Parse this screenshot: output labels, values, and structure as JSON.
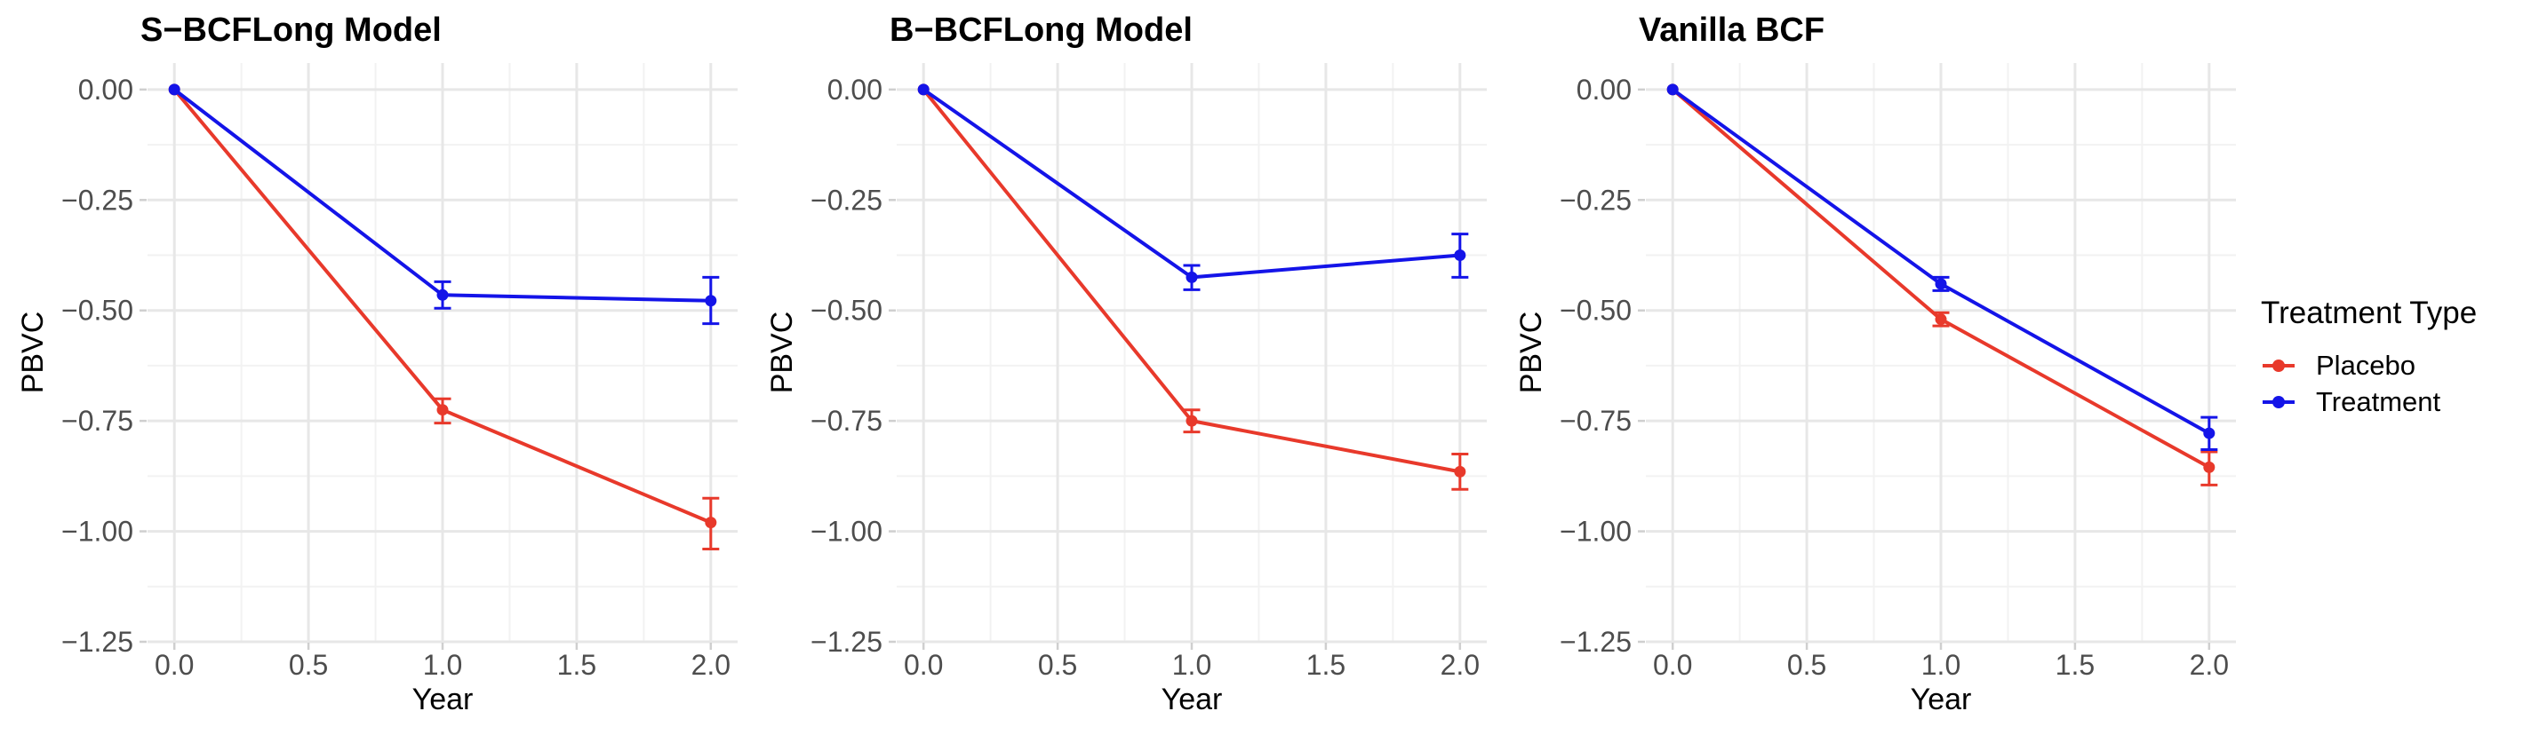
{
  "figure": {
    "background": "#ffffff",
    "grid_major_color": "#e7e7e7",
    "grid_minor_color": "#f2f2f2",
    "tick_mark_color": "#cfcfcf",
    "axis_text_color": "#4d4d4d"
  },
  "axes": {
    "x_label": "Year",
    "y_label": "PBVC",
    "x_ticks": [
      {
        "v": 0.0,
        "label": "0.0"
      },
      {
        "v": 0.5,
        "label": "0.5"
      },
      {
        "v": 1.0,
        "label": "1.0"
      },
      {
        "v": 1.5,
        "label": "1.5"
      },
      {
        "v": 2.0,
        "label": "2.0"
      }
    ],
    "y_ticks": [
      {
        "v": 0.0,
        "label": "0.00"
      },
      {
        "v": -0.25,
        "label": "−0.25"
      },
      {
        "v": -0.5,
        "label": "−0.50"
      },
      {
        "v": -0.75,
        "label": "−0.75"
      },
      {
        "v": -1.0,
        "label": "−1.00"
      },
      {
        "v": -1.25,
        "label": "−1.25"
      }
    ],
    "x_minor": [
      0.25,
      0.75,
      1.25,
      1.75
    ],
    "y_minor": [
      -0.125,
      -0.375,
      -0.625,
      -0.875,
      -1.125
    ]
  },
  "legend": {
    "title": "Treatment Type",
    "items": [
      {
        "label": "Placebo",
        "color": "#e8392b"
      },
      {
        "label": "Treatment",
        "color": "#1414e8"
      }
    ]
  },
  "chart_data": [
    {
      "type": "line",
      "title": "S−BCFLong Model",
      "xlabel": "Year",
      "ylabel": "PBVC",
      "x": [
        0,
        1,
        2
      ],
      "xlim": [
        -0.1,
        2.1
      ],
      "ylim_top": 0.06,
      "ylim_bottom": -1.25,
      "grid": true,
      "legend_position": "none",
      "series": [
        {
          "name": "Placebo",
          "color": "#e8392b",
          "values": [
            0,
            -0.725,
            -0.98
          ],
          "ci_low": [
            0,
            -0.755,
            -1.04
          ],
          "ci_high": [
            0,
            -0.7,
            -0.925
          ]
        },
        {
          "name": "Treatment",
          "color": "#1414e8",
          "values": [
            0,
            -0.465,
            -0.478
          ],
          "ci_low": [
            0,
            -0.495,
            -0.53
          ],
          "ci_high": [
            0,
            -0.435,
            -0.425
          ]
        }
      ]
    },
    {
      "type": "line",
      "title": "B−BCFLong Model",
      "xlabel": "Year",
      "ylabel": "PBVC",
      "x": [
        0,
        1,
        2
      ],
      "xlim": [
        -0.1,
        2.1
      ],
      "ylim_top": 0.06,
      "ylim_bottom": -1.25,
      "grid": true,
      "legend_position": "none",
      "series": [
        {
          "name": "Placebo",
          "color": "#e8392b",
          "values": [
            0,
            -0.75,
            -0.865
          ],
          "ci_low": [
            0,
            -0.775,
            -0.905
          ],
          "ci_high": [
            0,
            -0.725,
            -0.825
          ]
        },
        {
          "name": "Treatment",
          "color": "#1414e8",
          "values": [
            0,
            -0.425,
            -0.375
          ],
          "ci_low": [
            0,
            -0.453,
            -0.425
          ],
          "ci_high": [
            0,
            -0.398,
            -0.327
          ]
        }
      ]
    },
    {
      "type": "line",
      "title": "Vanilla BCF",
      "xlabel": "Year",
      "ylabel": "PBVC",
      "x": [
        0,
        1,
        2
      ],
      "xlim": [
        -0.1,
        2.1
      ],
      "ylim_top": 0.06,
      "ylim_bottom": -1.25,
      "grid": true,
      "legend_position": "right-of-figure",
      "series": [
        {
          "name": "Placebo",
          "color": "#e8392b",
          "values": [
            0,
            -0.52,
            -0.855
          ],
          "ci_low": [
            0,
            -0.535,
            -0.895
          ],
          "ci_high": [
            0,
            -0.505,
            -0.82
          ]
        },
        {
          "name": "Treatment",
          "color": "#1414e8",
          "values": [
            0,
            -0.44,
            -0.778
          ],
          "ci_low": [
            0,
            -0.455,
            -0.815
          ],
          "ci_high": [
            0,
            -0.425,
            -0.742
          ]
        }
      ]
    }
  ]
}
